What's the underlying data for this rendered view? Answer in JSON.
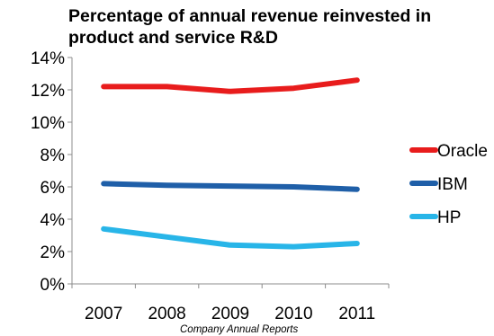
{
  "chart_data": {
    "type": "line",
    "title": "Percentage of annual revenue reinvested in product and service R&D",
    "xlabel": "",
    "ylabel": "",
    "x": [
      "2007",
      "2008",
      "2009",
      "2010",
      "2011"
    ],
    "ylim": [
      0,
      14
    ],
    "yticks": [
      "0%",
      "2%",
      "4%",
      "6%",
      "8%",
      "10%",
      "12%",
      "14%"
    ],
    "grid": false,
    "legend_position": "right",
    "series": [
      {
        "name": "Oracle",
        "color": "#e81c1c",
        "values": [
          12.2,
          12.2,
          11.9,
          12.1,
          12.6
        ]
      },
      {
        "name": "IBM",
        "color": "#1f5fa8",
        "values": [
          6.2,
          6.1,
          6.05,
          6.0,
          5.85
        ]
      },
      {
        "name": "HP",
        "color": "#28b5e8",
        "values": [
          3.4,
          2.9,
          2.4,
          2.3,
          2.5
        ]
      }
    ],
    "source": "Company Annual Reports"
  }
}
